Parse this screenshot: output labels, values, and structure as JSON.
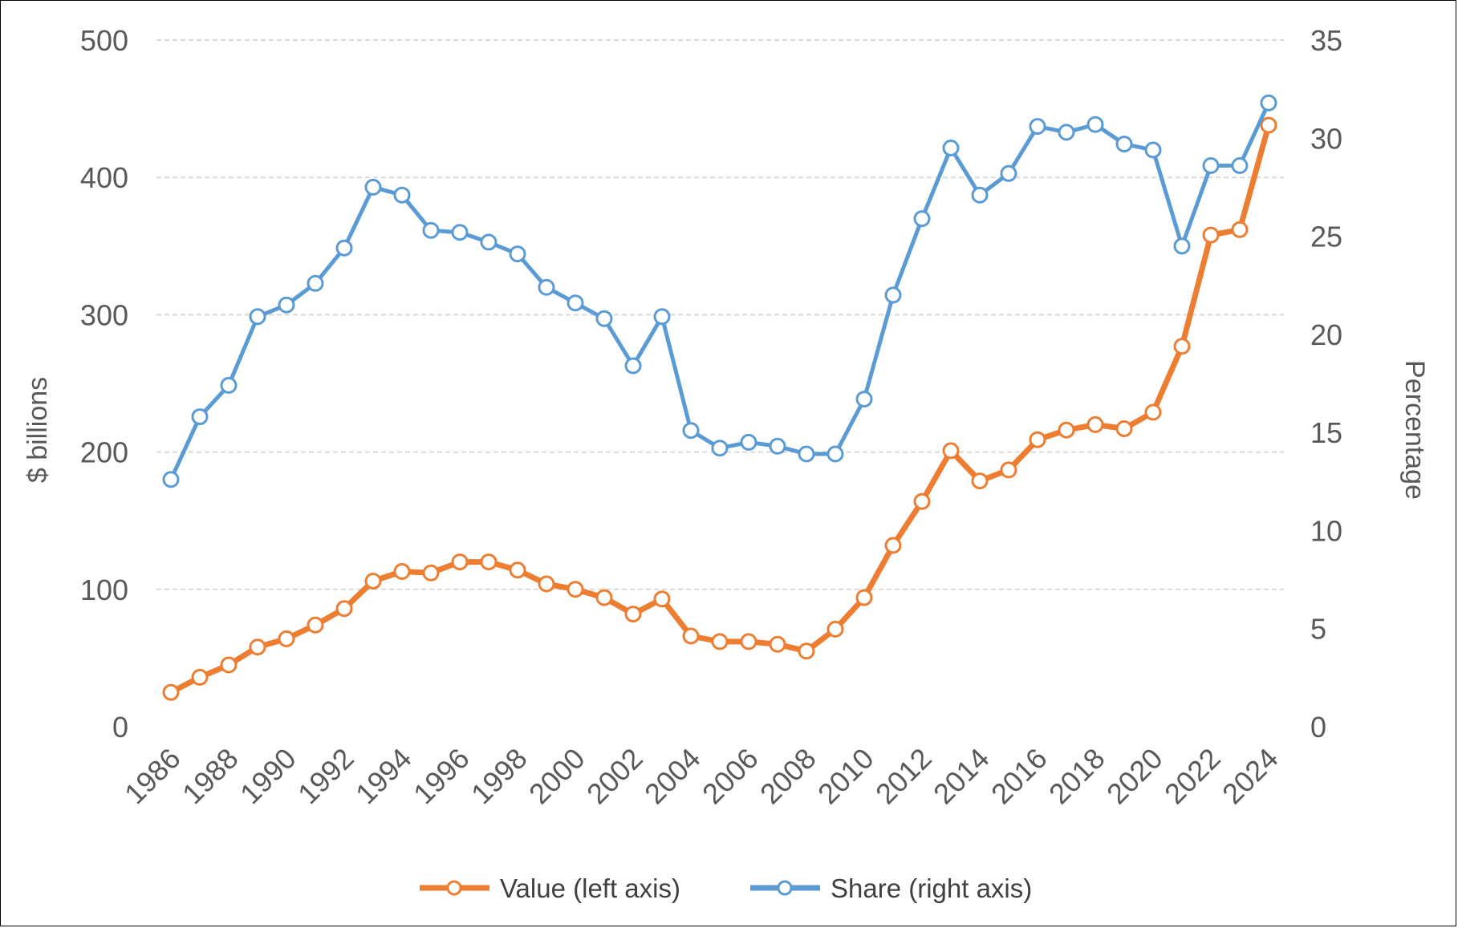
{
  "chart_data": {
    "type": "line",
    "title": "",
    "x": [
      1986,
      1987,
      1988,
      1989,
      1990,
      1991,
      1992,
      1993,
      1994,
      1995,
      1996,
      1997,
      1998,
      1999,
      2000,
      2001,
      2002,
      2003,
      2004,
      2005,
      2006,
      2007,
      2008,
      2009,
      2010,
      2011,
      2012,
      2013,
      2014,
      2015,
      2016,
      2017,
      2018,
      2019,
      2020,
      2021,
      2022,
      2023,
      2024
    ],
    "x_tick_labels": [
      "1986",
      "1988",
      "1990",
      "1992",
      "1994",
      "1996",
      "1998",
      "2000",
      "2002",
      "2004",
      "2006",
      "2008",
      "2010",
      "2012",
      "2014",
      "2016",
      "2018",
      "2020",
      "2022",
      "2024"
    ],
    "ylabel_left": "$ billions",
    "ylabel_right": "Percentage",
    "ylim_left": [
      0,
      500
    ],
    "ylim_right": [
      0,
      35
    ],
    "y_left_ticks": [
      0,
      100,
      200,
      300,
      400,
      500
    ],
    "y_right_ticks": [
      0,
      5,
      10,
      15,
      20,
      25,
      30,
      35
    ],
    "grid": true,
    "legend_position": "bottom",
    "series": [
      {
        "name": "Value (left axis)",
        "axis": "left",
        "color": "#ED7D31",
        "values": [
          25,
          36,
          45,
          58,
          64,
          74,
          86,
          106,
          113,
          112,
          120,
          120,
          114,
          104,
          100,
          94,
          82,
          93,
          66,
          62,
          62,
          60,
          55,
          71,
          94,
          132,
          164,
          201,
          179,
          187,
          209,
          216,
          220,
          217,
          229,
          277,
          358,
          362,
          438
        ]
      },
      {
        "name": "Share (right axis)",
        "axis": "right",
        "color": "#5B9BD5",
        "values": [
          12.6,
          15.8,
          17.4,
          20.9,
          21.5,
          22.6,
          24.4,
          27.5,
          27.1,
          25.3,
          25.2,
          24.7,
          24.1,
          22.4,
          21.6,
          20.8,
          18.4,
          20.9,
          15.1,
          14.2,
          14.5,
          14.3,
          13.9,
          13.9,
          16.7,
          22.0,
          25.9,
          29.5,
          27.1,
          28.2,
          30.6,
          30.3,
          30.7,
          29.7,
          29.4,
          24.5,
          28.6,
          28.6,
          31.8
        ]
      }
    ]
  }
}
